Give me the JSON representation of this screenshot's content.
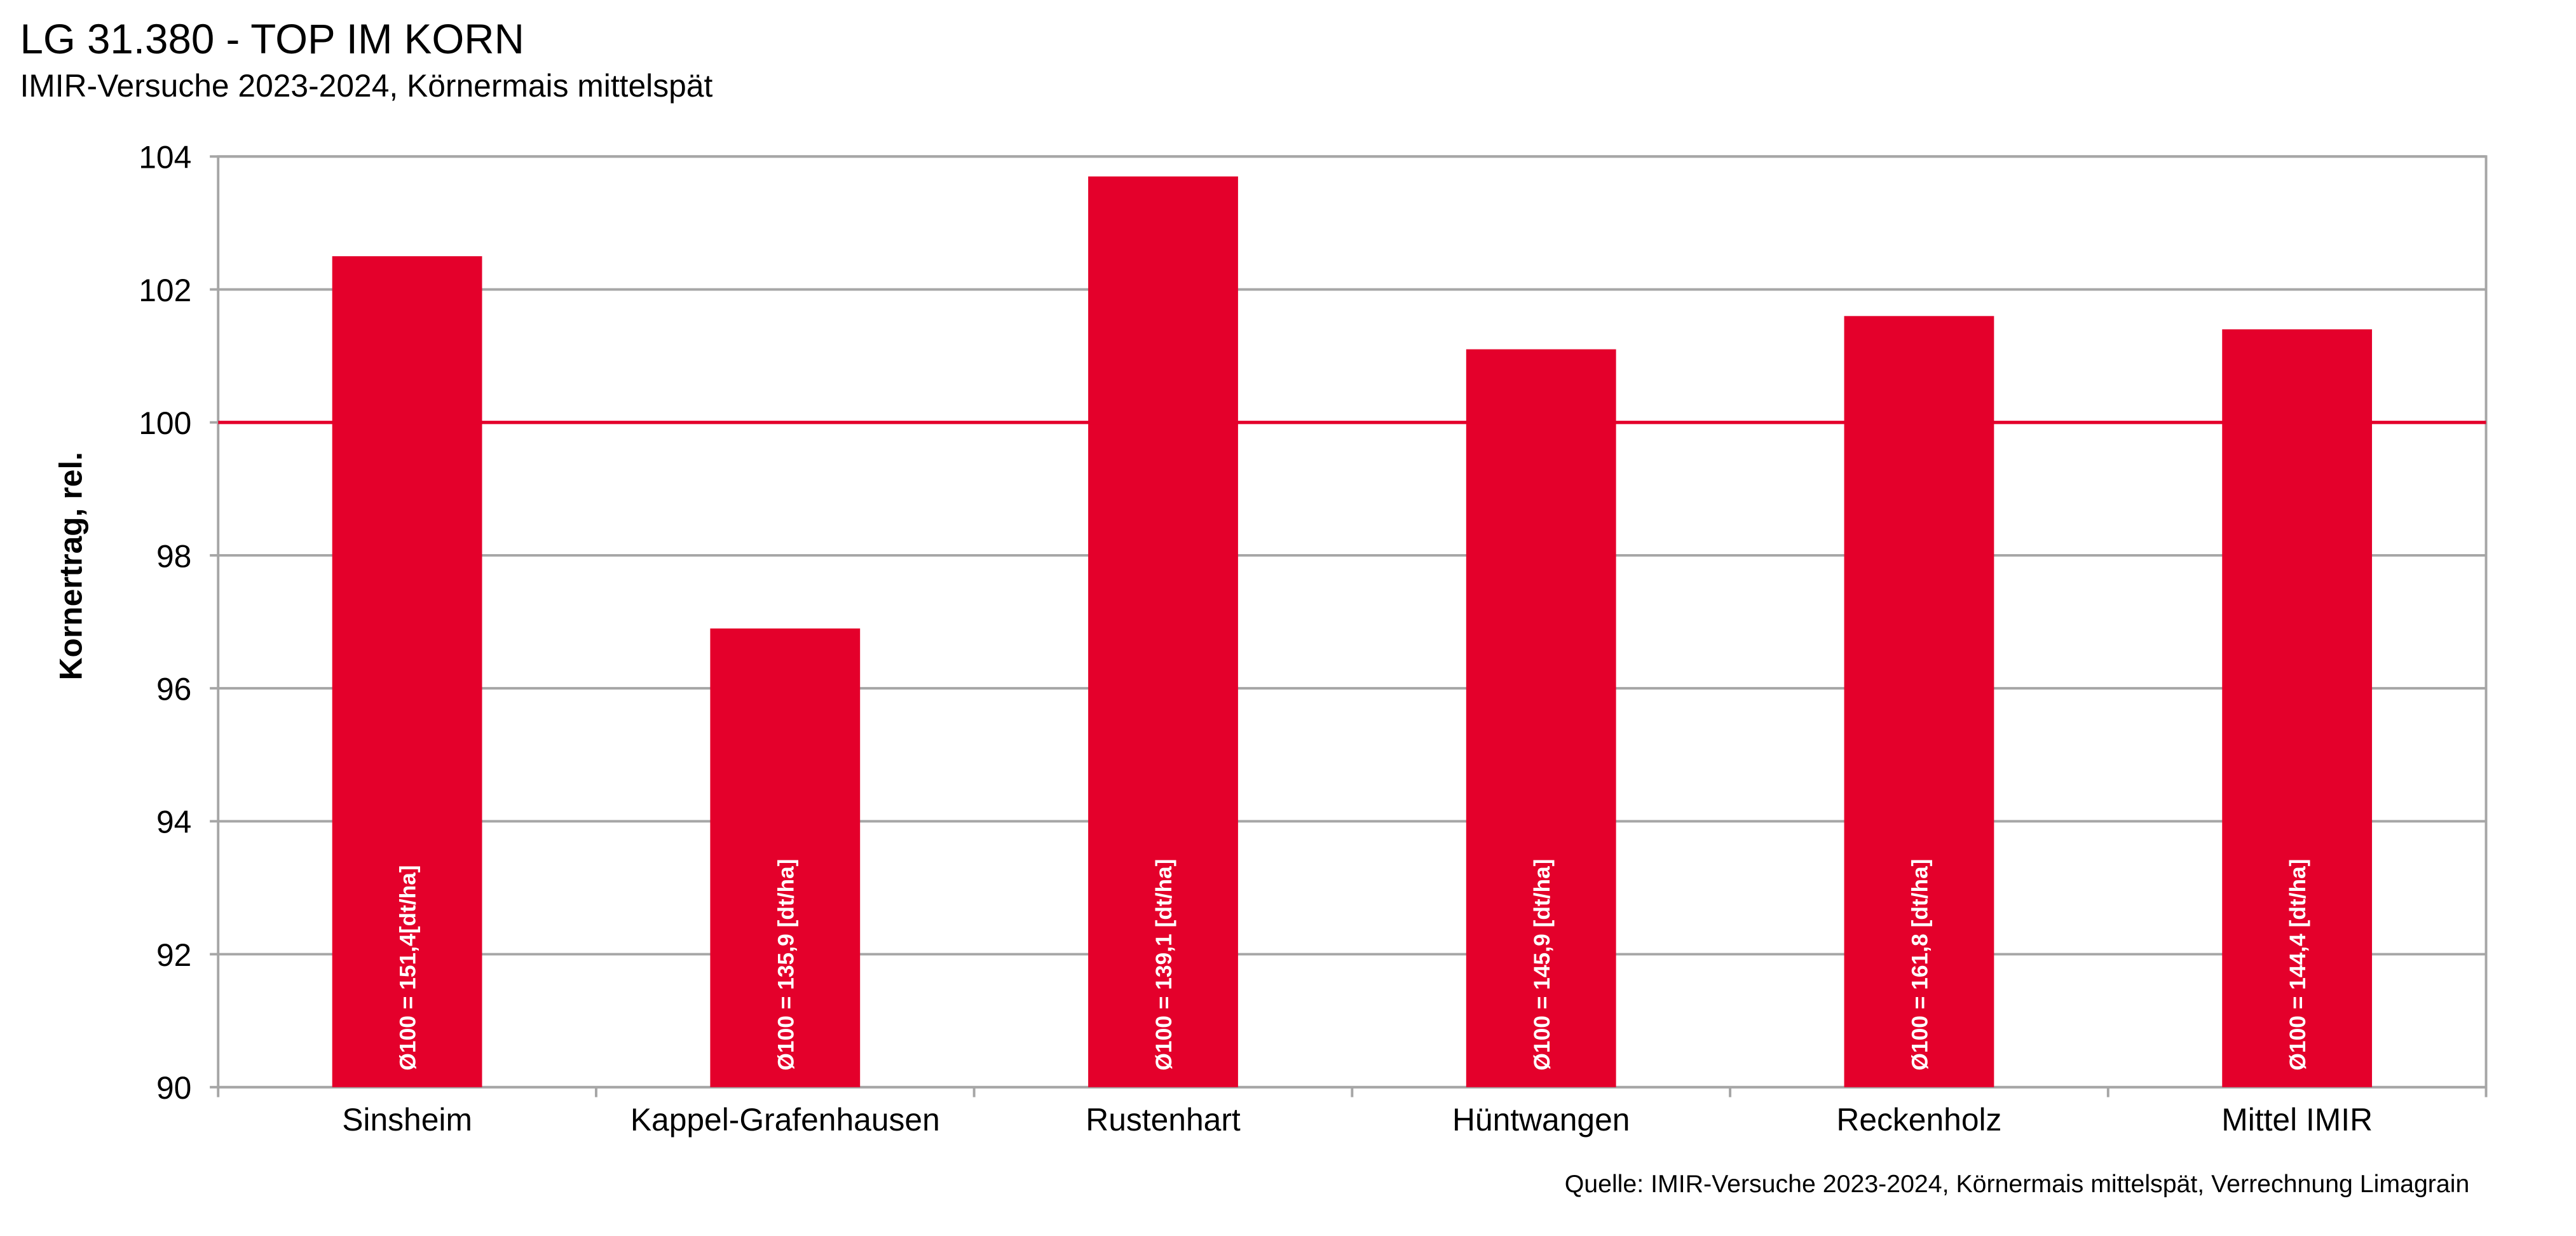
{
  "chart_data": {
    "type": "bar",
    "title": "LG 31.380 - TOP IM KORN",
    "subtitle": "IMIR-Versuche 2023-2024, Körnermais mittelspät",
    "y_label": "Kornertrag, rel.",
    "source": "Quelle: IMIR-Versuche  2023-2024, Körnermais mittelspät, Verrechnung Limagrain",
    "categories": [
      "Sinsheim",
      "Kappel-Grafenhausen",
      "Rustenhart",
      "Hüntwangen",
      "Reckenholz",
      "Mittel IMIR"
    ],
    "values": [
      102.5,
      96.9,
      103.7,
      101.1,
      101.6,
      101.4
    ],
    "bar_labels": [
      "Ø100 = 151,4[dt/ha]",
      "Ø100 = 135,9 [dt/ha]",
      "Ø100 = 139,1 [dt/ha]",
      "Ø100 = 145,9 [dt/ha]",
      "Ø100 = 161,8 [dt/ha]",
      "Ø100 = 144,4 [dt/ha]"
    ],
    "color": "#e4002b",
    "reference_line": {
      "value": 100,
      "color": "#e4002b"
    },
    "ylim": [
      90,
      104
    ],
    "yticks": [
      90,
      92,
      94,
      96,
      98,
      100,
      102,
      104
    ],
    "grid": true
  }
}
